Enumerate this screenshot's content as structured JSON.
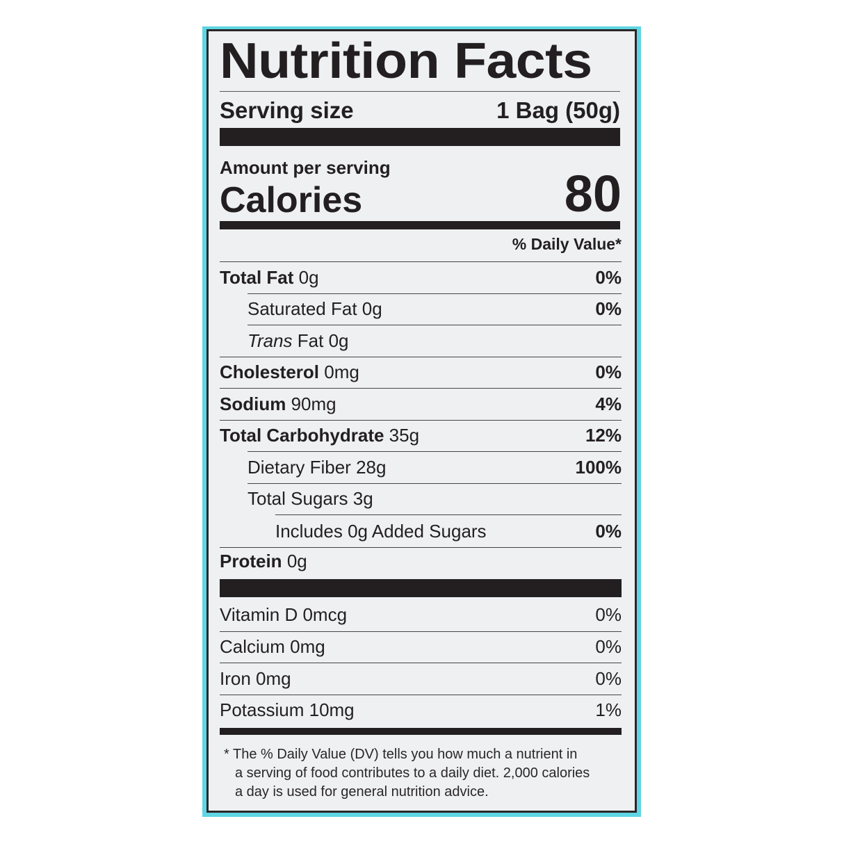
{
  "title": "Nutrition Facts",
  "serving": {
    "label": "Serving size",
    "value": "1 Bag (50g)"
  },
  "amount_per_serving": "Amount per serving",
  "calories": {
    "label": "Calories",
    "value": "80"
  },
  "daily_value_header": "% Daily Value*",
  "nutrients": [
    {
      "name": "Total Fat",
      "amount": "0g",
      "dv": "0%"
    },
    {
      "name": "Saturated Fat",
      "amount": "0g",
      "dv": "0%"
    },
    {
      "name": "Trans",
      "name_suffix": "Fat",
      "amount": "0g",
      "dv": ""
    },
    {
      "name": "Cholesterol",
      "amount": "0mg",
      "dv": "0%"
    },
    {
      "name": "Sodium",
      "amount": "90mg",
      "dv": "4%"
    },
    {
      "name": "Total Carbohydrate",
      "amount": "35g",
      "dv": "12%"
    },
    {
      "name": "Dietary Fiber",
      "amount": "28g",
      "dv": "100%"
    },
    {
      "name": "Total Sugars",
      "amount": "3g",
      "dv": ""
    },
    {
      "name": "Includes 0g Added Sugars",
      "amount": "",
      "dv": "0%"
    },
    {
      "name": "Protein",
      "amount": "0g",
      "dv": ""
    }
  ],
  "vitamins": [
    {
      "name": "Vitamin D 0mcg",
      "dv": "0%"
    },
    {
      "name": "Calcium 0mg",
      "dv": "0%"
    },
    {
      "name": "Iron 0mg",
      "dv": "0%"
    },
    {
      "name": "Potassium 10mg",
      "dv": "1%"
    }
  ],
  "footnote": [
    "* The % Daily Value (DV) tells you how much a nutrient in",
    "a serving of food contributes to a daily diet. 2,000 calories",
    "a day is used for general nutrition advice."
  ],
  "colors": {
    "background_panel": "#5fd6e3",
    "label_bg": "#eef0f2",
    "ink": "#231f20"
  }
}
